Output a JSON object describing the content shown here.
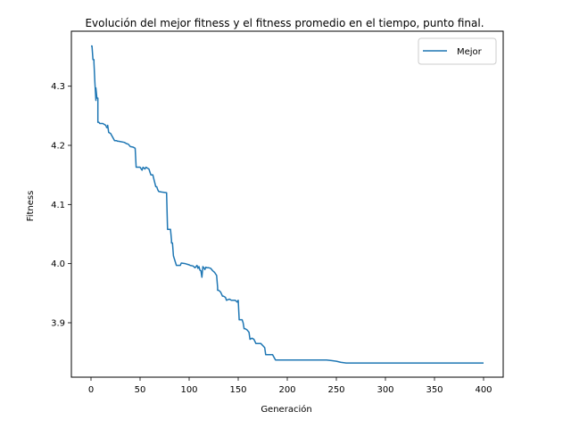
{
  "chart_data": {
    "type": "line",
    "title": "Evolución del mejor fitness y el fitness promedio en el tiempo, punto final.",
    "xlabel": "Generación",
    "ylabel": "Fitness",
    "xlim": [
      -20,
      420
    ],
    "ylim": [
      3.808,
      4.393
    ],
    "xticks": [
      0,
      50,
      100,
      150,
      200,
      250,
      300,
      350,
      400
    ],
    "yticks": [
      3.9,
      4.0,
      4.1,
      4.2,
      4.3
    ],
    "ytick_labels": [
      "3.9",
      "4.0",
      "4.1",
      "4.2",
      "4.3"
    ],
    "grid": false,
    "legend_position": "top-right",
    "series": [
      {
        "name": "Mejor",
        "color": "#1f77b4",
        "x": [
          0,
          1,
          2,
          3,
          3,
          4,
          5,
          5,
          6,
          7,
          7,
          8,
          9,
          12,
          15,
          16,
          17,
          17,
          18,
          20,
          24,
          26,
          27,
          28,
          34,
          36,
          38,
          40,
          43,
          45,
          46,
          50,
          52,
          53,
          55,
          56,
          58,
          59,
          61,
          63,
          66,
          67,
          68,
          69,
          72,
          77,
          78,
          80,
          81,
          82,
          82,
          83,
          84,
          87,
          91,
          92,
          96,
          100,
          101,
          104,
          106,
          108,
          109,
          110,
          111,
          112,
          113,
          114,
          115,
          116,
          117,
          118,
          119,
          120,
          122,
          124,
          126,
          128,
          129,
          129,
          130,
          132,
          134,
          135,
          137,
          138,
          141,
          143,
          145,
          147,
          149,
          150,
          151,
          152,
          153,
          154,
          155,
          156,
          157,
          159,
          161,
          162,
          164,
          166,
          168,
          170,
          173,
          177,
          178,
          179,
          185,
          188,
          200,
          220,
          240,
          245,
          250,
          255,
          260,
          300,
          350,
          400
        ],
        "y": [
          4.368,
          4.368,
          4.345,
          4.345,
          4.34,
          4.305,
          4.276,
          4.297,
          4.28,
          4.28,
          4.239,
          4.239,
          4.237,
          4.237,
          4.234,
          4.23,
          4.23,
          4.234,
          4.222,
          4.22,
          4.208,
          4.208,
          4.207,
          4.207,
          4.205,
          4.203,
          4.202,
          4.198,
          4.197,
          4.195,
          4.163,
          4.163,
          4.158,
          4.163,
          4.16,
          4.163,
          4.161,
          4.16,
          4.15,
          4.15,
          4.13,
          4.13,
          4.125,
          4.122,
          4.121,
          4.12,
          4.058,
          4.058,
          4.058,
          4.04,
          4.035,
          4.035,
          4.013,
          3.997,
          3.997,
          4.001,
          4.0,
          3.998,
          3.997,
          3.996,
          3.993,
          3.997,
          3.992,
          3.995,
          3.989,
          3.988,
          3.977,
          3.995,
          3.993,
          3.99,
          3.994,
          3.993,
          3.993,
          3.993,
          3.992,
          3.988,
          3.985,
          3.98,
          3.96,
          3.955,
          3.955,
          3.952,
          3.945,
          3.945,
          3.943,
          3.938,
          3.94,
          3.938,
          3.938,
          3.938,
          3.935,
          3.938,
          3.905,
          3.905,
          3.905,
          3.905,
          3.9,
          3.89,
          3.89,
          3.888,
          3.884,
          3.872,
          3.874,
          3.872,
          3.865,
          3.865,
          3.865,
          3.858,
          3.846,
          3.846,
          3.846,
          3.837,
          3.837,
          3.837,
          3.837,
          3.836,
          3.835,
          3.833,
          3.832,
          3.832,
          3.832,
          3.832
        ]
      }
    ]
  }
}
